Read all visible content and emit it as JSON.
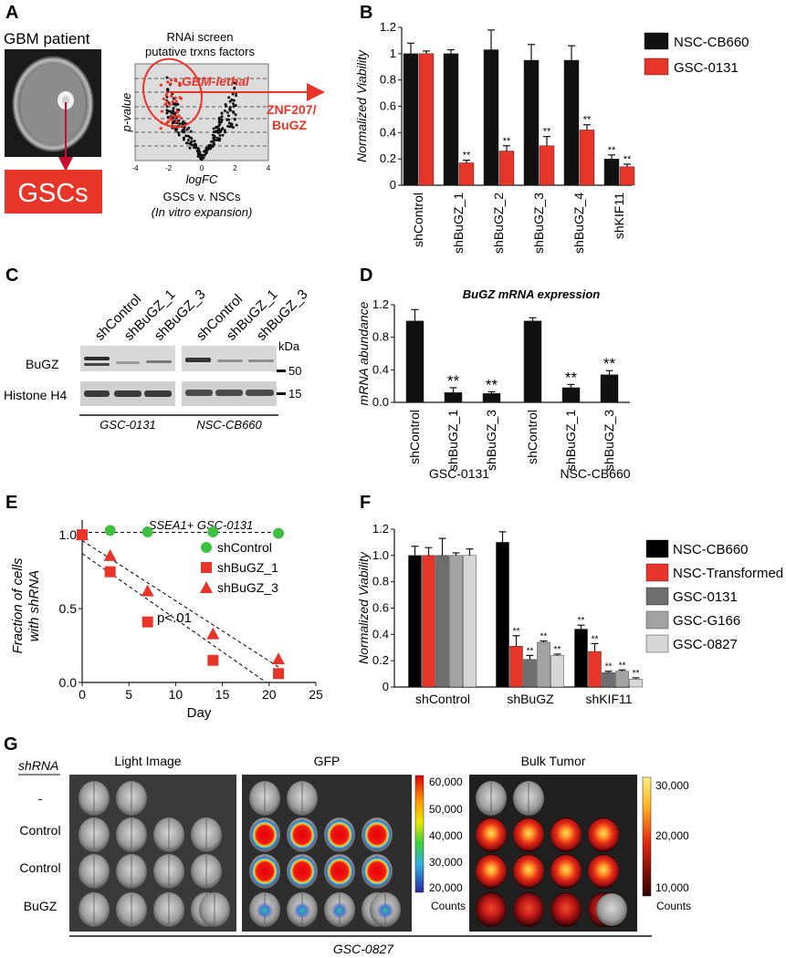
{
  "panels": {
    "A": {
      "label": "A",
      "patient_label": "GBM patient",
      "gsc_label": "GSCs",
      "screen_title": [
        "RNAi screen",
        "putative trxns factors"
      ],
      "lethal_label": "GBM-lethal",
      "hit_label": [
        "ZNF207/",
        "BuGZ"
      ],
      "y_label": "p-value",
      "x_label": "logFC",
      "x_ticks": [
        "-4",
        "-2",
        "0",
        "2",
        "4"
      ],
      "caption": [
        "GSCs v. NSCs",
        "(In vitro expansion)"
      ],
      "colors": {
        "hit": "#e8352a",
        "points": "#111111"
      }
    },
    "B": {
      "label": "B",
      "chart_data": {
        "type": "bar",
        "ylabel": "Normalized Viability",
        "ylim": [
          0,
          1.2
        ],
        "yticks": [
          "0",
          "0.2",
          "0.4",
          "0.6",
          "0.8",
          "1",
          "1.2"
        ],
        "categories": [
          "shControl",
          "shBuGZ_1",
          "shBuGZ_2",
          "shBuGZ_3",
          "shBuGZ_4",
          "shKIF11"
        ],
        "series": [
          {
            "name": "NSC-CB660",
            "color": "#111111",
            "values": [
              1.0,
              1.0,
              1.03,
              0.95,
              0.95,
              0.2
            ],
            "errors": [
              0.08,
              0.03,
              0.15,
              0.12,
              0.11,
              0.03
            ],
            "sig": [
              "",
              "",
              "",
              "",
              "",
              "**"
            ]
          },
          {
            "name": "GSC-0131",
            "color": "#e8352a",
            "values": [
              1.0,
              0.17,
              0.26,
              0.3,
              0.42,
              0.14
            ],
            "errors": [
              0.02,
              0.02,
              0.04,
              0.07,
              0.04,
              0.02
            ],
            "sig": [
              "",
              "**",
              "**",
              "**",
              "**",
              "**"
            ]
          }
        ]
      }
    },
    "C": {
      "label": "C",
      "lanes_left": [
        "shControl",
        "shBuGZ_1",
        "shBuGZ_3"
      ],
      "lanes_right": [
        "shControl",
        "shBuGZ_1",
        "shBuGZ_3"
      ],
      "row_labels": [
        "BuGZ",
        "Histone H4"
      ],
      "kda_label": "kDa",
      "markers": [
        "50",
        "15"
      ],
      "group_left": "GSC-0131",
      "group_right": "NSC-CB660"
    },
    "D": {
      "label": "D",
      "chart_data": {
        "type": "bar",
        "title": "BuGZ mRNA expression",
        "ylabel": "mRNA abundance",
        "ylim": [
          0,
          1.2
        ],
        "yticks": [
          "0.0",
          "0.4",
          "0.8",
          "1.2"
        ],
        "categories": [
          "shControl",
          "shBuGZ_1",
          "shBuGZ_3",
          "shControl",
          "shBuGZ_1",
          "shBuGZ_3"
        ],
        "values": [
          1.0,
          0.12,
          0.11,
          1.0,
          0.18,
          0.34
        ],
        "errors": [
          0.14,
          0.06,
          0.02,
          0.04,
          0.04,
          0.05
        ],
        "sig": [
          "",
          "**",
          "**",
          "",
          "**",
          "**"
        ],
        "groups": [
          "GSC-0131",
          "NSC-CB660"
        ],
        "color": "#111111"
      }
    },
    "E": {
      "label": "E",
      "chart_data": {
        "type": "scatter",
        "title": "SSEA1+ GSC-0131",
        "xlabel": "Day",
        "ylabel": [
          "Fraction of cells",
          "with shRNA"
        ],
        "xlim": [
          0,
          25
        ],
        "ylim": [
          0,
          1.1
        ],
        "xticks": [
          "0",
          "5",
          "10",
          "15",
          "20",
          "25"
        ],
        "yticks": [
          "0.0",
          "0.5",
          "1.0"
        ],
        "annotation": "p<.01",
        "series": [
          {
            "name": "shControl",
            "marker": "circle",
            "color": "#3fbf3f",
            "x": [
              0,
              3,
              7,
              14,
              21
            ],
            "y": [
              1.0,
              1.03,
              1.02,
              1.02,
              1.01
            ]
          },
          {
            "name": "shBuGZ_1",
            "marker": "square",
            "color": "#e8352a",
            "x": [
              0,
              3,
              7,
              14,
              21
            ],
            "y": [
              1.0,
              0.75,
              0.41,
              0.15,
              0.06
            ]
          },
          {
            "name": "shBuGZ_3",
            "marker": "triangle",
            "color": "#e8352a",
            "x": [
              0,
              3,
              7,
              14,
              21
            ],
            "y": [
              1.0,
              0.86,
              0.62,
              0.33,
              0.16
            ]
          }
        ]
      }
    },
    "F": {
      "label": "F",
      "chart_data": {
        "type": "bar",
        "ylabel": "Normalized Viability",
        "ylim": [
          0,
          1.2
        ],
        "yticks": [
          "0",
          "0.2",
          "0.4",
          "0.6",
          "0.8",
          "1.0",
          "1.2"
        ],
        "categories": [
          "shControl",
          "shBuGZ",
          "shKIF11"
        ],
        "series": [
          {
            "name": "NSC-CB660",
            "color": "#000000",
            "values": [
              1.0,
              1.1,
              0.44
            ],
            "errors": [
              0.07,
              0.08,
              0.03
            ],
            "sig": [
              "",
              "",
              "**"
            ]
          },
          {
            "name": "NSC-Transformed",
            "color": "#e8352a",
            "values": [
              1.0,
              0.31,
              0.27
            ],
            "errors": [
              0.06,
              0.08,
              0.06
            ],
            "sig": [
              "",
              "**",
              "**"
            ]
          },
          {
            "name": "GSC-0131",
            "color": "#6e6e6e",
            "values": [
              1.0,
              0.21,
              0.11
            ],
            "errors": [
              0.13,
              0.03,
              0.01
            ],
            "sig": [
              "",
              "**",
              "**"
            ]
          },
          {
            "name": "GSC-G166",
            "color": "#a3a3a3",
            "values": [
              1.0,
              0.34,
              0.12
            ],
            "errors": [
              0.02,
              0.01,
              0.01
            ],
            "sig": [
              "",
              "**",
              "**"
            ]
          },
          {
            "name": "GSC-0827",
            "color": "#d6d6d6",
            "values": [
              1.0,
              0.24,
              0.06
            ],
            "errors": [
              0.05,
              0.01,
              0.01
            ],
            "sig": [
              "",
              "**",
              "**"
            ]
          }
        ]
      }
    },
    "G": {
      "label": "G",
      "row_header": "shRNA",
      "row_labels": [
        "-",
        "Control",
        "Control",
        "BuGZ"
      ],
      "section_titles": [
        "Light Image",
        "GFP",
        "Bulk Tumor"
      ],
      "gfp_scale": [
        "60,000",
        "50,000",
        "40,000",
        "30,000",
        "20,000"
      ],
      "bulk_scale": [
        "30,000",
        "20,000",
        "10,000"
      ],
      "counts_label": "Counts",
      "footer": "GSC-0827"
    }
  }
}
